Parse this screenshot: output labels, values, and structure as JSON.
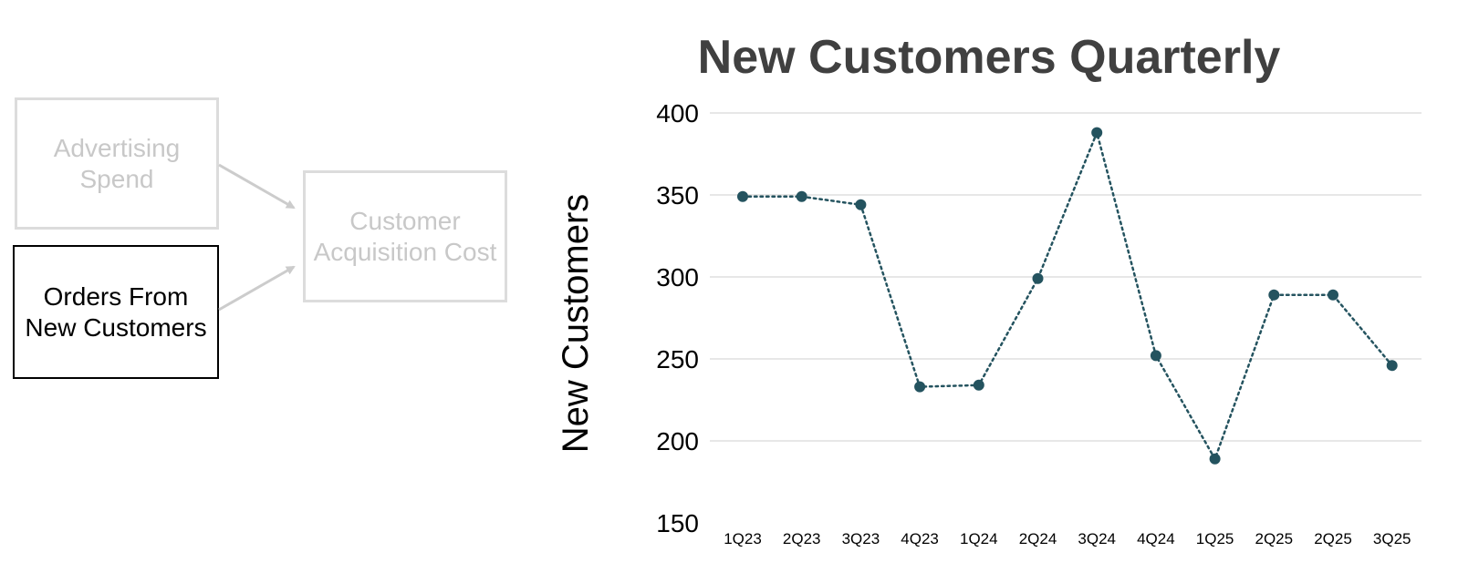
{
  "flow": {
    "boxes": [
      {
        "label": "Advertising\nSpend",
        "state": "inactive"
      },
      {
        "label": "Orders From\nNew Customers",
        "state": "active"
      },
      {
        "label": "Customer\nAcquisition Cost",
        "state": "inactive"
      }
    ]
  },
  "colors": {
    "line": "#24535f",
    "grid": "#cfcfcf",
    "inactive_border": "#dcdcdc",
    "inactive_text": "#c8c8c8",
    "arrow": "#cccccc"
  },
  "chart_data": {
    "type": "line",
    "title": "New Customers Quarterly",
    "xlabel": "",
    "ylabel": "New Customers",
    "categories": [
      "1Q23",
      "2Q23",
      "3Q23",
      "4Q23",
      "1Q24",
      "2Q24",
      "3Q24",
      "4Q24",
      "1Q25",
      "2Q25",
      "2Q25",
      "3Q25"
    ],
    "values": [
      349,
      349,
      344,
      233,
      234,
      299,
      388,
      252,
      189,
      289,
      289,
      246
    ],
    "ylim": [
      150,
      400
    ],
    "yticks": [
      150,
      200,
      250,
      300,
      350,
      400
    ],
    "grid": true,
    "line_style": "dotted",
    "markers": true
  }
}
